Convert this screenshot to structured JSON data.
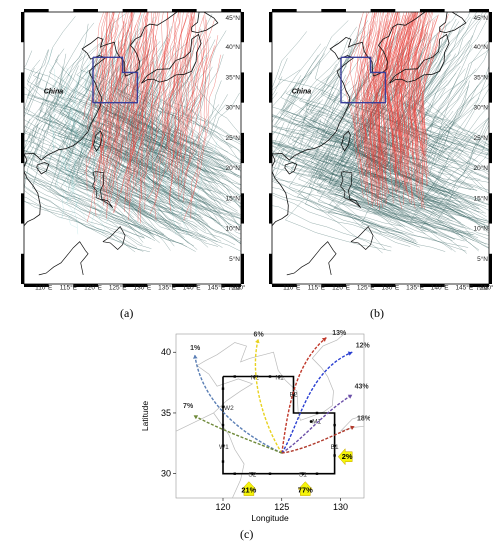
{
  "panel_a": {
    "label": "(a)",
    "country_label": "China",
    "lat_ticks": [
      "45°N",
      "40°N",
      "35°N",
      "30°N",
      "25°N",
      "20°N",
      "15°N",
      "10°N",
      "5°N",
      "0°N"
    ],
    "lon_ticks": [
      "110°E",
      "115°E",
      "120°E",
      "125°E",
      "130°E",
      "135°E",
      "140°E",
      "145°E",
      "150°E"
    ],
    "colors": {
      "tracks": "#2f5d5b",
      "highlight": "#e8413a",
      "box": "#3a3f9a"
    }
  },
  "panel_b": {
    "label": "(b)",
    "country_label": "China",
    "lat_ticks": [
      "45°N",
      "40°N",
      "35°N",
      "30°N",
      "25°N",
      "20°N",
      "15°N",
      "10°N",
      "5°N",
      "0°N"
    ],
    "lon_ticks": [
      "110°E",
      "115°E",
      "120°E",
      "125°E",
      "130°E",
      "135°E",
      "140°E",
      "145°E",
      "150°E"
    ],
    "colors": {
      "tracks": "#2f5d5b",
      "highlight": "#e8413a",
      "box": "#3a3f9a"
    }
  },
  "panel_c": {
    "label": "(c)",
    "xlabel": "Longitude",
    "ylabel": "Latitude",
    "x_ticks": [
      "120",
      "125",
      "130"
    ],
    "y_ticks": [
      "40",
      "35",
      "30"
    ],
    "nodes": [
      "N2",
      "N1",
      "W2",
      "E2",
      "M1",
      "W1",
      "E1",
      "S2",
      "S1"
    ],
    "exit_paths": [
      {
        "pct": "1%",
        "color": "#5b7fb5"
      },
      {
        "pct": "6%",
        "color": "#e8d21f"
      },
      {
        "pct": "13%",
        "color": "#c0392b"
      },
      {
        "pct": "12%",
        "color": "#2a3fd1"
      },
      {
        "pct": "43%",
        "color": "#6b4fa8"
      },
      {
        "pct": "18%",
        "color": "#b0392b"
      },
      {
        "pct": "7%",
        "color": "#6f8a3a"
      }
    ],
    "entries": [
      {
        "pct": "21%"
      },
      {
        "pct": "77%"
      },
      {
        "pct": "2%"
      }
    ],
    "highlight_color": "#f4f40a"
  }
}
